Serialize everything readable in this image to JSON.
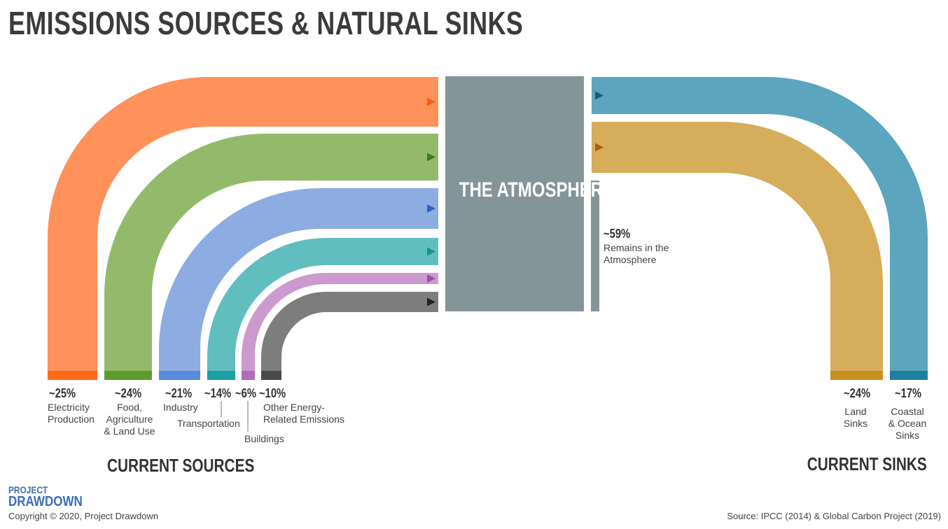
{
  "title": "EMISSIONS SOURCES & NATURAL SINKS",
  "atmosphere_label": "THE ATMOSPHERE",
  "remains": {
    "percent": "~59%",
    "label": "Remains in the\nAtmosphere",
    "color": "#839599"
  },
  "sources_heading": "CURRENT SOURCES",
  "sinks_heading": "CURRENT SINKS",
  "sources": [
    {
      "percent": "~25%",
      "label": "Electricity\nProduction",
      "color": "#FF915A",
      "dark": "#FF6A1A",
      "arrow": "#FF5A1A"
    },
    {
      "percent": "~24%",
      "label": "Food,\nAgriculture\n& Land Use",
      "color": "#93BA6A",
      "dark": "#5E9A2E",
      "arrow": "#3F7A1E"
    },
    {
      "percent": "~21%",
      "label": "Industry",
      "color": "#8DACE2",
      "dark": "#5A8ADA",
      "arrow": "#2F62C8"
    },
    {
      "percent": "~14%",
      "label": "Transportation",
      "color": "#60BEBF",
      "dark": "#1FA0A0",
      "arrow": "#1A9090"
    },
    {
      "percent": "~6%",
      "label": "Buildings",
      "color": "#CB9ACE",
      "dark": "#B46CBA",
      "arrow": "#A04DAA"
    },
    {
      "percent": "~10%",
      "label": "Other Energy-\nRelated Emissions",
      "color": "#7D7D7D",
      "dark": "#4A4A4A",
      "arrow": "#222222"
    }
  ],
  "sinks": [
    {
      "percent": "~24%",
      "label": "Land\nSinks",
      "color": "#D6AD5A",
      "dark": "#C8901E",
      "arrow": "#A8620E"
    },
    {
      "percent": "~17%",
      "label": "Coastal\n& Ocean\nSinks",
      "color": "#5BA5BF",
      "dark": "#1E7FA0",
      "arrow": "#1A5A8A"
    }
  ],
  "logo": {
    "line1": "PROJECT",
    "line2": "DRAWDOWN"
  },
  "copyright": "Copyright © 2020, Project Drawdown",
  "source": "Source: IPCC (2014) & Global Carbon Project (2019)"
}
